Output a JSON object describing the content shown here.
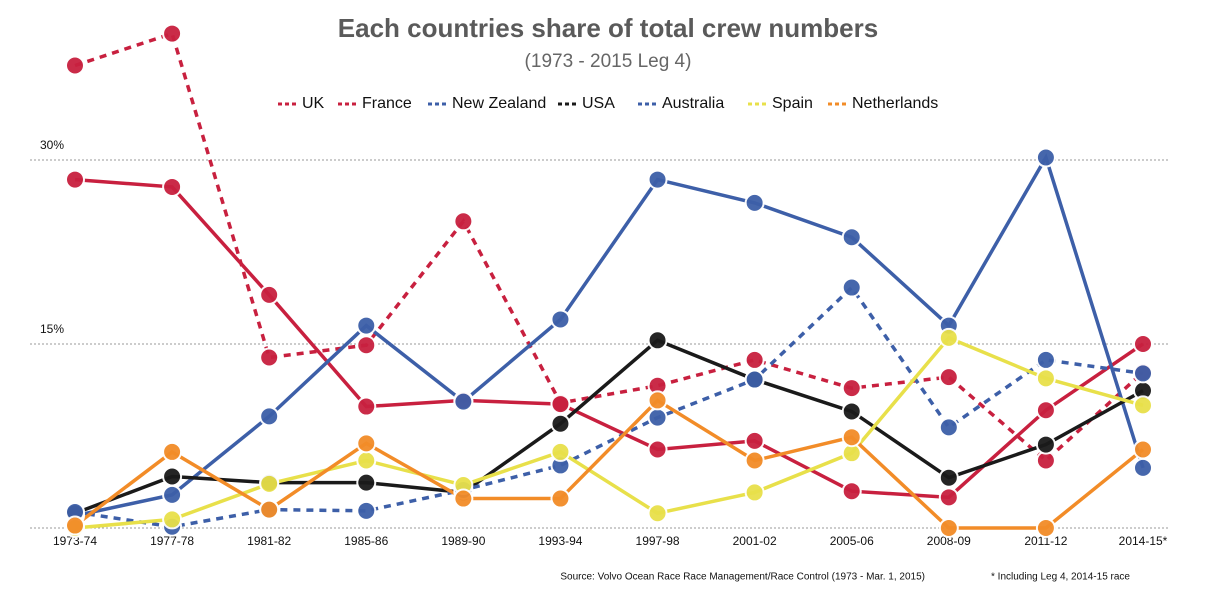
{
  "chart_data": {
    "type": "line",
    "title": "Each countries share of total crew numbers",
    "subtitle": "(1973 - 2015 Leg 4)",
    "source": "Source: Volvo Ocean Race Race Management/Race Control (1973 - Mar. 1, 2015)",
    "footnote": "* Including Leg 4, 2014-15 race",
    "categories": [
      "1973-74",
      "1977-78",
      "1981-82",
      "1985-86",
      "1989-90",
      "1993-94",
      "1997-98",
      "2001-02",
      "2005-06",
      "2008-09",
      "2011-12",
      "2014-15*"
    ],
    "ylim": [
      0,
      41
    ],
    "yticks": [
      {
        "value": 15,
        "label": "15%"
      },
      {
        "value": 30,
        "label": "30%"
      }
    ],
    "grid": true,
    "legend": "top",
    "series": [
      {
        "name": "UK",
        "color": "#c8203f",
        "dashed": true,
        "values": [
          37.7,
          40.3,
          13.9,
          14.9,
          25.0,
          10.2,
          11.6,
          13.7,
          11.4,
          12.3,
          5.5,
          12.7
        ]
      },
      {
        "name": "France",
        "color": "#c8203f",
        "dashed": false,
        "values": [
          28.4,
          27.8,
          19.0,
          9.9,
          10.4,
          10.1,
          6.4,
          7.1,
          3.0,
          2.5,
          9.6,
          15.0
        ]
      },
      {
        "name": "New Zealand",
        "color": "#3d5fa8",
        "dashed": false,
        "values": [
          1.0,
          2.7,
          9.1,
          16.5,
          10.3,
          17.0,
          28.4,
          26.5,
          23.7,
          16.5,
          30.2,
          4.9
        ]
      },
      {
        "name": "USA",
        "color": "#1a1a1a",
        "dashed": false,
        "values": [
          1.2,
          4.2,
          3.7,
          3.7,
          2.9,
          8.5,
          15.3,
          12.1,
          9.5,
          4.1,
          6.8,
          11.2
        ]
      },
      {
        "name": "Australia",
        "color": "#3d5fa8",
        "dashed": true,
        "values": [
          1.3,
          0.1,
          1.5,
          1.4,
          3.1,
          5.1,
          9.0,
          12.1,
          19.6,
          8.2,
          13.7,
          12.6
        ]
      },
      {
        "name": "Spain",
        "color": "#e8e04a",
        "dashed": false,
        "values": [
          0,
          0.7,
          3.6,
          5.5,
          3.5,
          6.2,
          1.2,
          2.9,
          6.1,
          15.5,
          12.2,
          10.0
        ]
      },
      {
        "name": "Netherlands",
        "color": "#f28c28",
        "dashed": false,
        "values": [
          0.2,
          6.2,
          1.5,
          6.9,
          2.4,
          2.4,
          10.4,
          5.5,
          7.4,
          0,
          0,
          6.4
        ]
      }
    ]
  }
}
